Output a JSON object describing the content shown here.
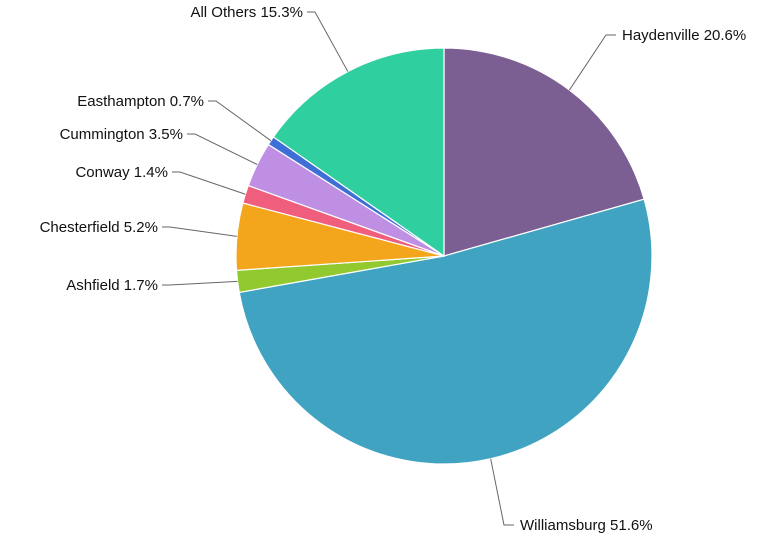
{
  "chart_data": {
    "type": "pie",
    "title": "",
    "slices": [
      {
        "name": "Haydenville",
        "value": 20.6,
        "label": "Haydenville 20.6%",
        "color": "#7b5e92",
        "label_side": "right"
      },
      {
        "name": "Williamsburg",
        "value": 51.6,
        "label": "Williamsburg 51.6%",
        "color": "#40a3c2",
        "label_side": "right"
      },
      {
        "name": "Ashfield",
        "value": 1.7,
        "label": "Ashfield 1.7%",
        "color": "#92c92e",
        "label_side": "left"
      },
      {
        "name": "Chesterfield",
        "value": 5.2,
        "label": "Chesterfield 5.2%",
        "color": "#f3a51b",
        "label_side": "left"
      },
      {
        "name": "Conway",
        "value": 1.4,
        "label": "Conway 1.4%",
        "color": "#ef5e7c",
        "label_side": "left"
      },
      {
        "name": "Cummington",
        "value": 3.5,
        "label": "Cummington 3.5%",
        "color": "#be8fe3",
        "label_side": "left"
      },
      {
        "name": "Easthampton",
        "value": 0.7,
        "label": "Easthampton 0.7%",
        "color": "#3d6fd6",
        "label_side": "left"
      },
      {
        "name": "All Others",
        "value": 15.3,
        "label": "All Others 15.3%",
        "color": "#2fcf9f",
        "label_side": "left"
      }
    ],
    "start_angle": "12 o'clock",
    "direction": "clockwise",
    "legend": "none, labels beside slices"
  }
}
